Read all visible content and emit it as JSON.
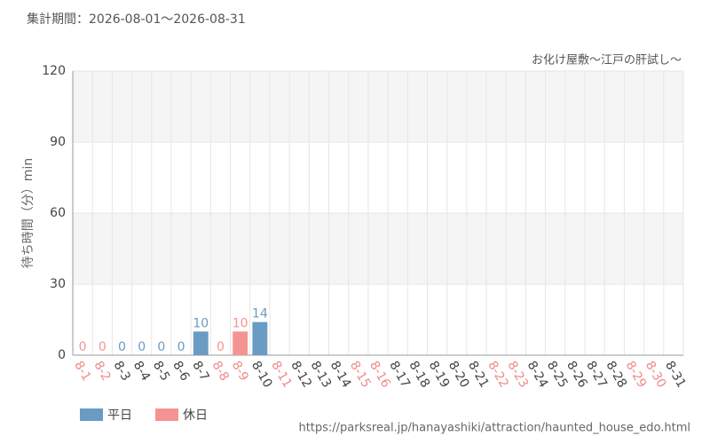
{
  "header": {
    "period": "集計期間：2026-08-01～2026-08-31"
  },
  "footer": {
    "url": "https://parksreal.jp/hanayashiki/attraction/haunted_house_edo.html"
  },
  "chart_data": {
    "type": "bar",
    "subtitle": "お化け屋敷～江戸の肝試し～",
    "y_label": "待ち時間（分）min",
    "categories": [
      "8-1",
      "8-2",
      "8-3",
      "8-4",
      "8-5",
      "8-6",
      "8-7",
      "8-8",
      "8-9",
      "8-10",
      "8-11",
      "8-12",
      "8-13",
      "8-14",
      "8-15",
      "8-16",
      "8-17",
      "8-18",
      "8-19",
      "8-20",
      "8-21",
      "8-22",
      "8-23",
      "8-24",
      "8-25",
      "8-26",
      "8-27",
      "8-28",
      "8-29",
      "8-30",
      "8-31"
    ],
    "category_colors": [
      "#f08a8a",
      "#f08a8a",
      "#444",
      "#444",
      "#444",
      "#444",
      "#444",
      "#f08a8a",
      "#f08a8a",
      "#444",
      "#f08a8a",
      "#444",
      "#444",
      "#444",
      "#f08a8a",
      "#f08a8a",
      "#444",
      "#444",
      "#444",
      "#444",
      "#444",
      "#f08a8a",
      "#f08a8a",
      "#444",
      "#444",
      "#444",
      "#444",
      "#444",
      "#f08a8a",
      "#f08a8a",
      "#444"
    ],
    "series": [
      {
        "name": "平日",
        "color": "#6a9bc3",
        "values": [
          null,
          null,
          0,
          0,
          0,
          0,
          10,
          null,
          null,
          14,
          null,
          null,
          null,
          null,
          null,
          null,
          null,
          null,
          null,
          null,
          null,
          null,
          null,
          null,
          null,
          null,
          null,
          null,
          null,
          null,
          null
        ]
      },
      {
        "name": "休日",
        "color": "#f59393",
        "values": [
          0,
          0,
          null,
          null,
          null,
          null,
          null,
          0,
          10,
          null,
          null,
          null,
          null,
          null,
          null,
          null,
          null,
          null,
          null,
          null,
          null,
          null,
          null,
          null,
          null,
          null,
          null,
          null,
          null,
          null,
          null
        ]
      }
    ],
    "ylim": [
      0,
      120
    ],
    "yticks": [
      0,
      30,
      60,
      90,
      120
    ],
    "grid": true,
    "legend": "bottom-left"
  }
}
